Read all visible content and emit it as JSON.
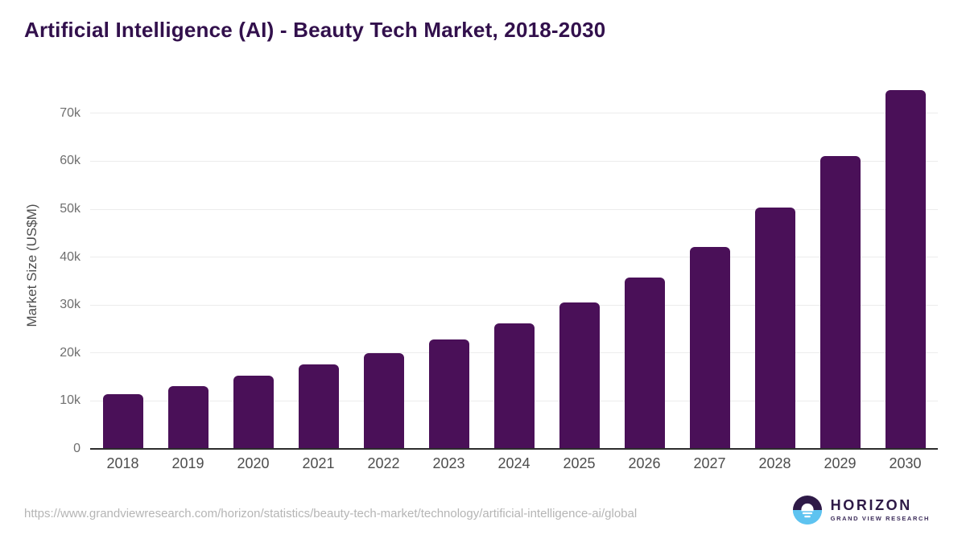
{
  "title": "Artificial Intelligence (AI) - Beauty Tech Market, 2018-2030",
  "chart_data": {
    "type": "bar",
    "title": "Artificial Intelligence (AI) - Beauty Tech Market, 2018-2030",
    "categories": [
      "2018",
      "2019",
      "2020",
      "2021",
      "2022",
      "2023",
      "2024",
      "2025",
      "2026",
      "2027",
      "2028",
      "2029",
      "2030"
    ],
    "values": [
      11400,
      13100,
      15300,
      17600,
      20000,
      22800,
      26200,
      30500,
      35700,
      42100,
      50300,
      61000,
      74800
    ],
    "xlabel": "",
    "ylabel": "Market Size (US$M)",
    "ylim": [
      0,
      75500
    ],
    "yticks": [
      {
        "value": 0,
        "label": "0"
      },
      {
        "value": 10000,
        "label": "10k"
      },
      {
        "value": 20000,
        "label": "20k"
      },
      {
        "value": 30000,
        "label": "30k"
      },
      {
        "value": 40000,
        "label": "40k"
      },
      {
        "value": 50000,
        "label": "50k"
      },
      {
        "value": 60000,
        "label": "60k"
      },
      {
        "value": 70000,
        "label": "70k"
      }
    ],
    "grid": true,
    "legend": false,
    "bar_color": "#4a1058"
  },
  "colors": {
    "title": "#32104c",
    "bar": "#4a1058",
    "gridline": "#ececec",
    "axis_line": "#2d2d2d",
    "tick_text": "#6e6e6e",
    "logo_purple": "#2e1a47",
    "logo_blue": "#5ec3f0"
  },
  "footer": {
    "source_url": "https://www.grandviewresearch.com/horizon/statistics/beauty-tech-market/technology/artificial-intelligence-ai/global",
    "logo": {
      "wordmark": "HORIZON",
      "subtitle": "GRAND VIEW RESEARCH"
    }
  }
}
